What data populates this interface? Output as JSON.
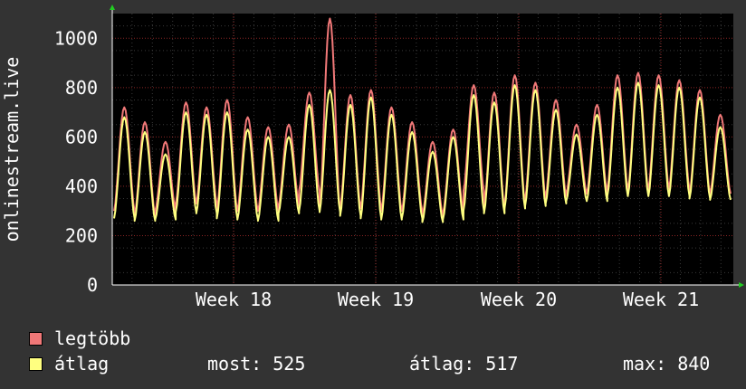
{
  "chart_data": {
    "type": "line",
    "ylabel": "onlinestream.live",
    "ylim": [
      0,
      1100
    ],
    "yticks": [
      0,
      200,
      400,
      600,
      800,
      1000
    ],
    "xticks": [
      "Week 18",
      "Week 19",
      "Week 20",
      "Week 21"
    ],
    "grid": true,
    "series": [
      {
        "name": "legtöbb",
        "color": "#f07878",
        "cycles": [
          {
            "peak": 720,
            "trough": 300
          },
          {
            "peak": 660,
            "trough": 280
          },
          {
            "peak": 580,
            "trough": 300
          },
          {
            "peak": 740,
            "trough": 330
          },
          {
            "peak": 720,
            "trough": 330
          },
          {
            "peak": 750,
            "trough": 300
          },
          {
            "peak": 680,
            "trough": 300
          },
          {
            "peak": 640,
            "trough": 300
          },
          {
            "peak": 650,
            "trough": 320
          },
          {
            "peak": 780,
            "trough": 380
          },
          {
            "peak": 1080,
            "trough": 300
          },
          {
            "peak": 770,
            "trough": 310
          },
          {
            "peak": 790,
            "trough": 310
          },
          {
            "peak": 720,
            "trough": 300
          },
          {
            "peak": 660,
            "trough": 300
          },
          {
            "peak": 580,
            "trough": 280
          },
          {
            "peak": 630,
            "trough": 290
          },
          {
            "peak": 810,
            "trough": 380
          },
          {
            "peak": 780,
            "trough": 310
          },
          {
            "peak": 850,
            "trough": 330
          },
          {
            "peak": 820,
            "trough": 350
          },
          {
            "peak": 750,
            "trough": 360
          },
          {
            "peak": 650,
            "trough": 370
          },
          {
            "peak": 730,
            "trough": 370
          },
          {
            "peak": 850,
            "trough": 390
          },
          {
            "peak": 860,
            "trough": 380
          },
          {
            "peak": 850,
            "trough": 390
          },
          {
            "peak": 830,
            "trough": 390
          },
          {
            "peak": 790,
            "trough": 370
          },
          {
            "peak": 690,
            "trough": 370
          }
        ]
      },
      {
        "name": "átlag",
        "color": "#ffff80",
        "cycles": [
          {
            "peak": 680,
            "trough": 270
          },
          {
            "peak": 620,
            "trough": 260
          },
          {
            "peak": 530,
            "trough": 265
          },
          {
            "peak": 700,
            "trough": 295
          },
          {
            "peak": 690,
            "trough": 290
          },
          {
            "peak": 700,
            "trough": 270
          },
          {
            "peak": 630,
            "trough": 265
          },
          {
            "peak": 600,
            "trough": 260
          },
          {
            "peak": 600,
            "trough": 290
          },
          {
            "peak": 730,
            "trough": 300
          },
          {
            "peak": 790,
            "trough": 295
          },
          {
            "peak": 730,
            "trough": 280
          },
          {
            "peak": 760,
            "trough": 270
          },
          {
            "peak": 690,
            "trough": 265
          },
          {
            "peak": 620,
            "trough": 270
          },
          {
            "peak": 540,
            "trough": 255
          },
          {
            "peak": 600,
            "trough": 265
          },
          {
            "peak": 770,
            "trough": 300
          },
          {
            "peak": 740,
            "trough": 290
          },
          {
            "peak": 810,
            "trough": 310
          },
          {
            "peak": 790,
            "trough": 320
          },
          {
            "peak": 710,
            "trough": 330
          },
          {
            "peak": 610,
            "trough": 340
          },
          {
            "peak": 690,
            "trough": 340
          },
          {
            "peak": 800,
            "trough": 360
          },
          {
            "peak": 820,
            "trough": 360
          },
          {
            "peak": 810,
            "trough": 360
          },
          {
            "peak": 800,
            "trough": 360
          },
          {
            "peak": 760,
            "trough": 350
          },
          {
            "peak": 640,
            "trough": 345
          }
        ]
      }
    ]
  },
  "legend": {
    "max_label": "legtöbb",
    "avg_label": "átlag"
  },
  "stats": {
    "now": "most: 525",
    "avg": "átlag: 517",
    "max": "max: 840"
  }
}
